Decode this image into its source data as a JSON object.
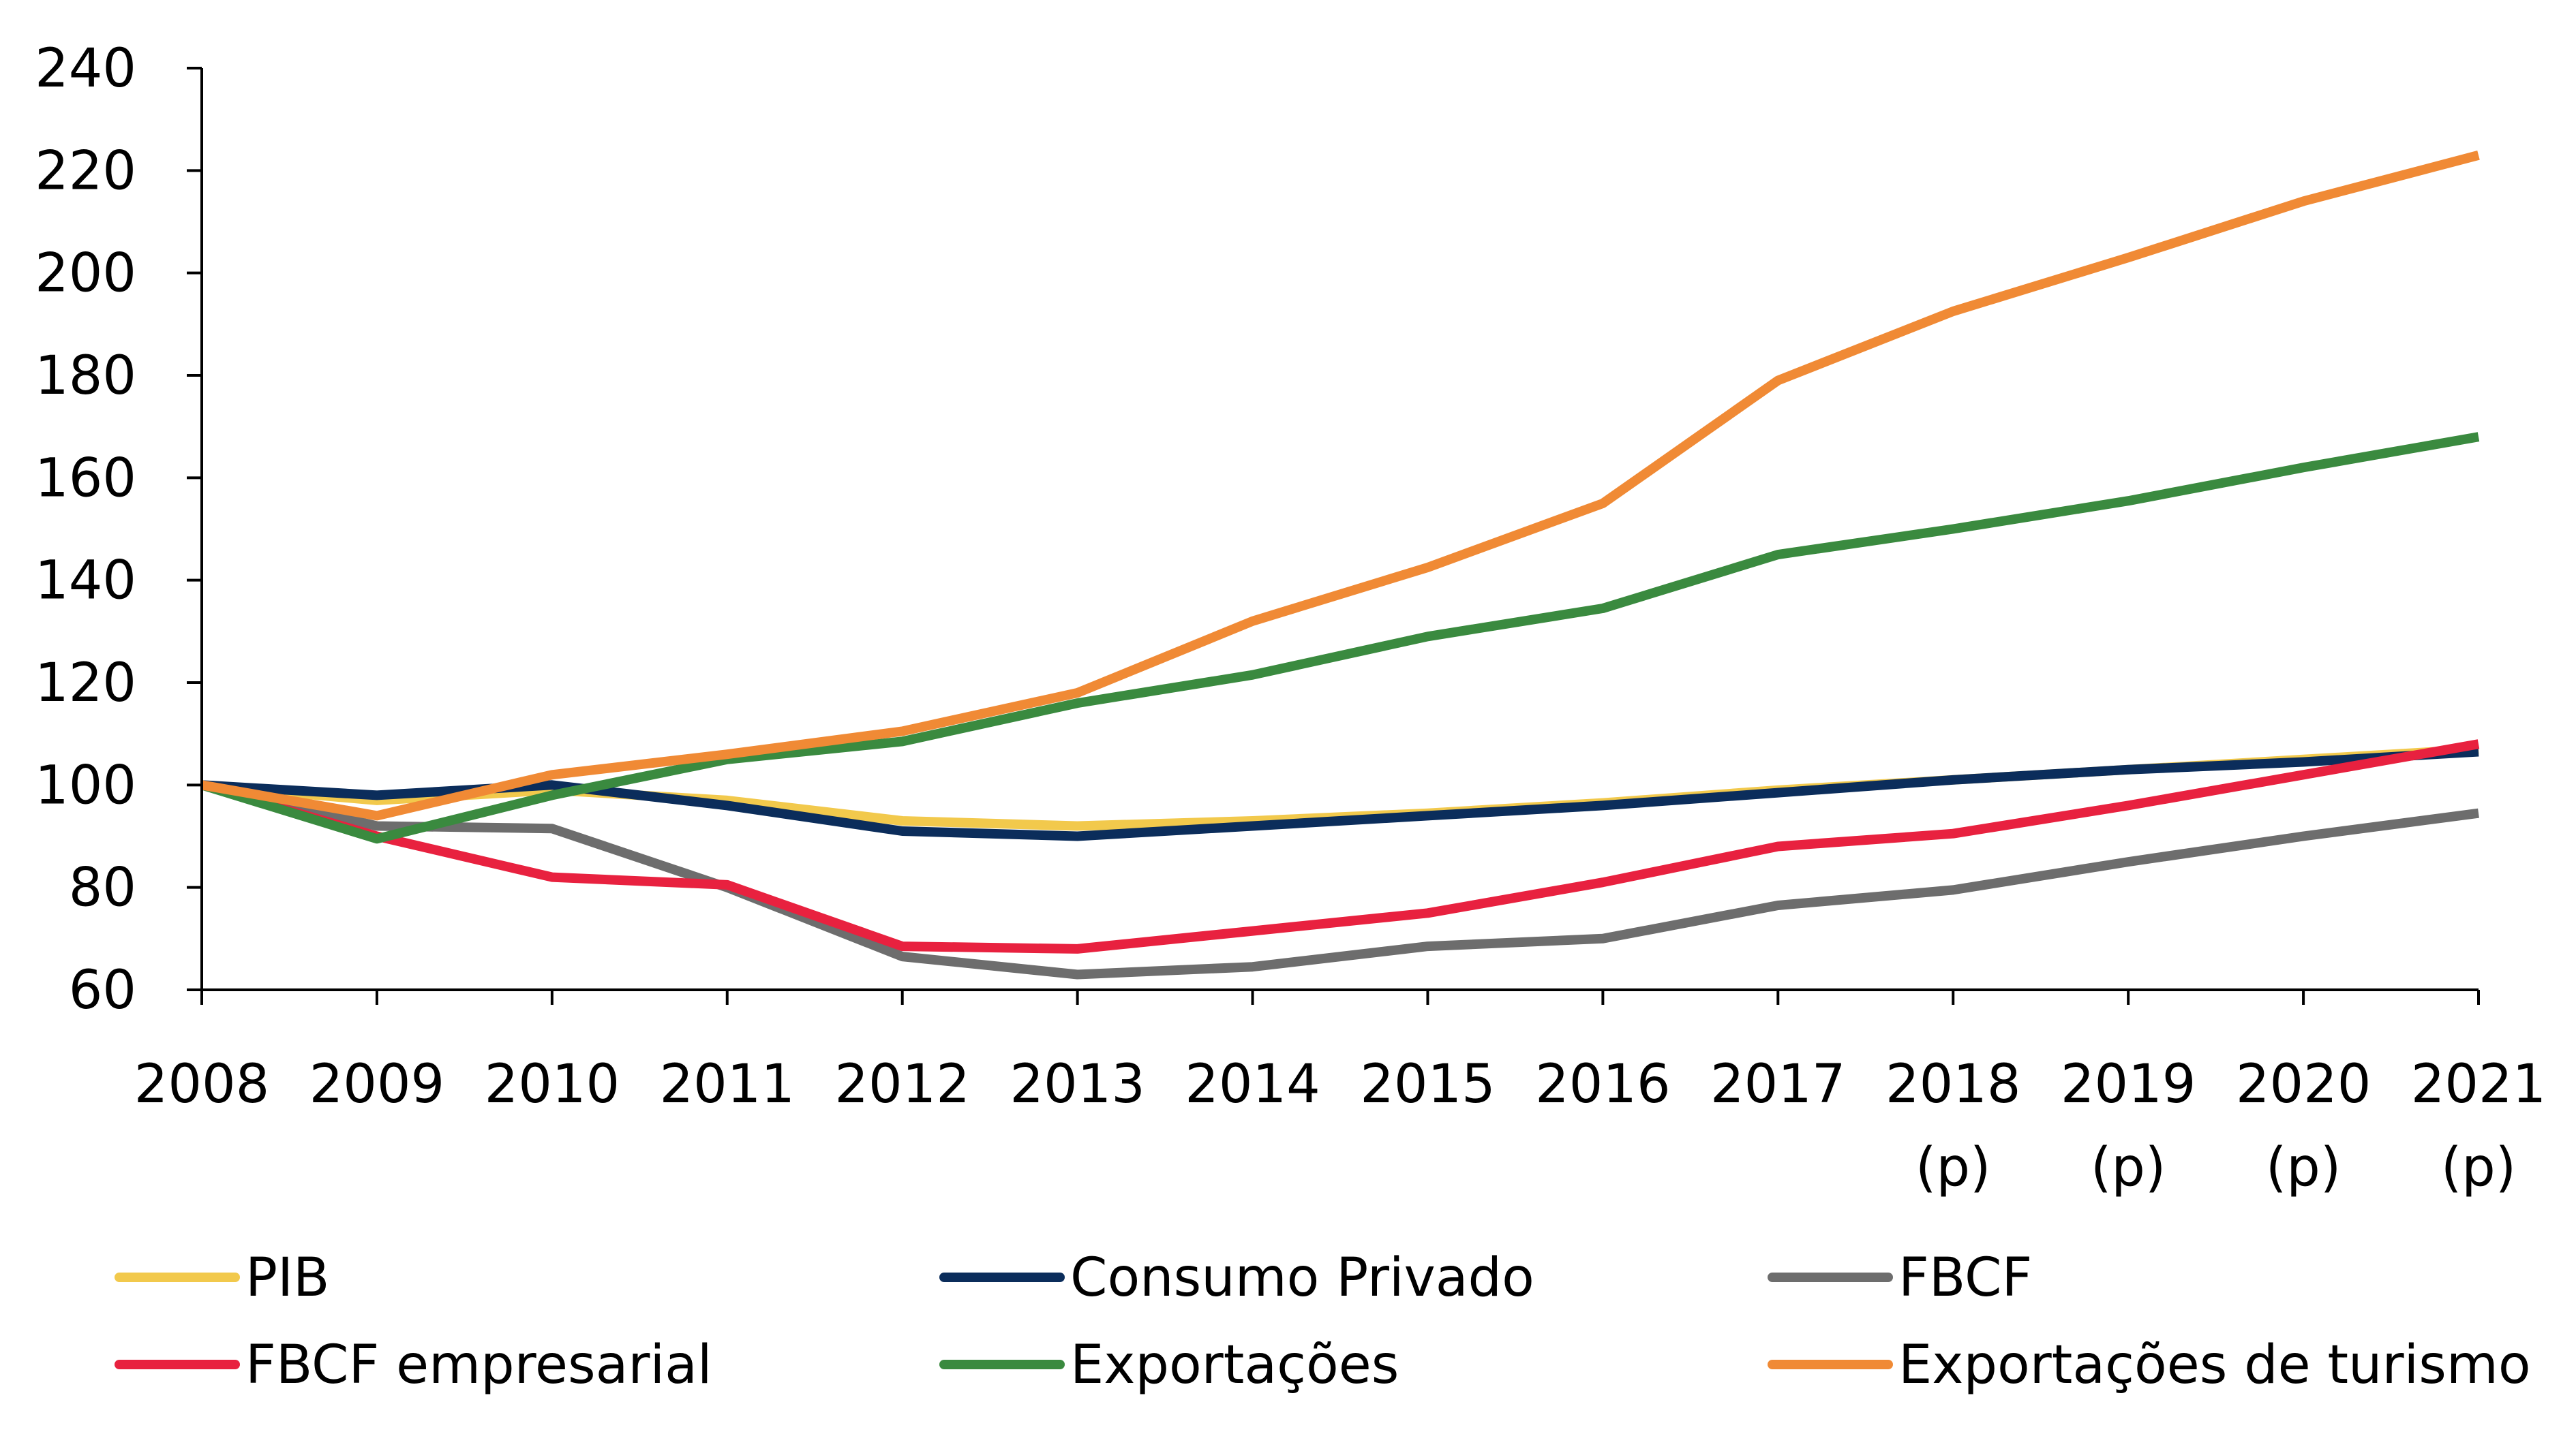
{
  "chart_data": {
    "type": "line",
    "title": "",
    "xlabel": "",
    "ylabel": "",
    "ylim": [
      60,
      240
    ],
    "yticks": [
      60,
      80,
      100,
      120,
      140,
      160,
      180,
      200,
      220,
      240
    ],
    "grid": false,
    "legend_position": "bottom",
    "categories": [
      {
        "year": "2008",
        "suffix": ""
      },
      {
        "year": "2009",
        "suffix": ""
      },
      {
        "year": "2010",
        "suffix": ""
      },
      {
        "year": "2011",
        "suffix": ""
      },
      {
        "year": "2012",
        "suffix": ""
      },
      {
        "year": "2013",
        "suffix": ""
      },
      {
        "year": "2014",
        "suffix": ""
      },
      {
        "year": "2015",
        "suffix": ""
      },
      {
        "year": "2016",
        "suffix": ""
      },
      {
        "year": "2017",
        "suffix": ""
      },
      {
        "year": "2018",
        "suffix": "(p)"
      },
      {
        "year": "2019",
        "suffix": "(p)"
      },
      {
        "year": "2020",
        "suffix": "(p)"
      },
      {
        "year": "2021",
        "suffix": "(p)"
      }
    ],
    "series": [
      {
        "name": "PIB",
        "color": "#f2c94c",
        "values": [
          100,
          97,
          99,
          97,
          93,
          92,
          93,
          94.5,
          96.5,
          99,
          101,
          103,
          105,
          107
        ]
      },
      {
        "name": "Consumo Privado",
        "color": "#0b2d5b",
        "values": [
          100,
          98,
          100,
          96,
          91,
          90,
          92,
          94,
          96,
          98.5,
          101,
          103,
          104.5,
          106.5
        ]
      },
      {
        "name": "FBCF",
        "color": "#6d6d6d",
        "values": [
          100,
          92,
          91.5,
          80,
          66.5,
          63,
          64.5,
          68.5,
          70,
          76.5,
          79.5,
          85,
          90,
          94.5
        ]
      },
      {
        "name": "FBCF empresarial",
        "color": "#e8213f",
        "values": [
          100,
          90,
          82,
          80.5,
          68.5,
          68,
          71.5,
          75,
          81,
          88,
          90.5,
          96,
          102,
          108
        ]
      },
      {
        "name": "Exportações",
        "color": "#3a8a3f",
        "values": [
          100,
          89.5,
          98,
          105,
          108.5,
          116,
          121.5,
          129,
          134.5,
          145,
          150,
          155.5,
          162,
          168
        ]
      },
      {
        "name": "Exportações de turismo",
        "color": "#f08a35",
        "values": [
          100,
          94,
          102,
          106,
          110.5,
          118,
          132,
          142.5,
          155,
          179,
          192.5,
          203,
          214,
          223
        ]
      }
    ]
  }
}
